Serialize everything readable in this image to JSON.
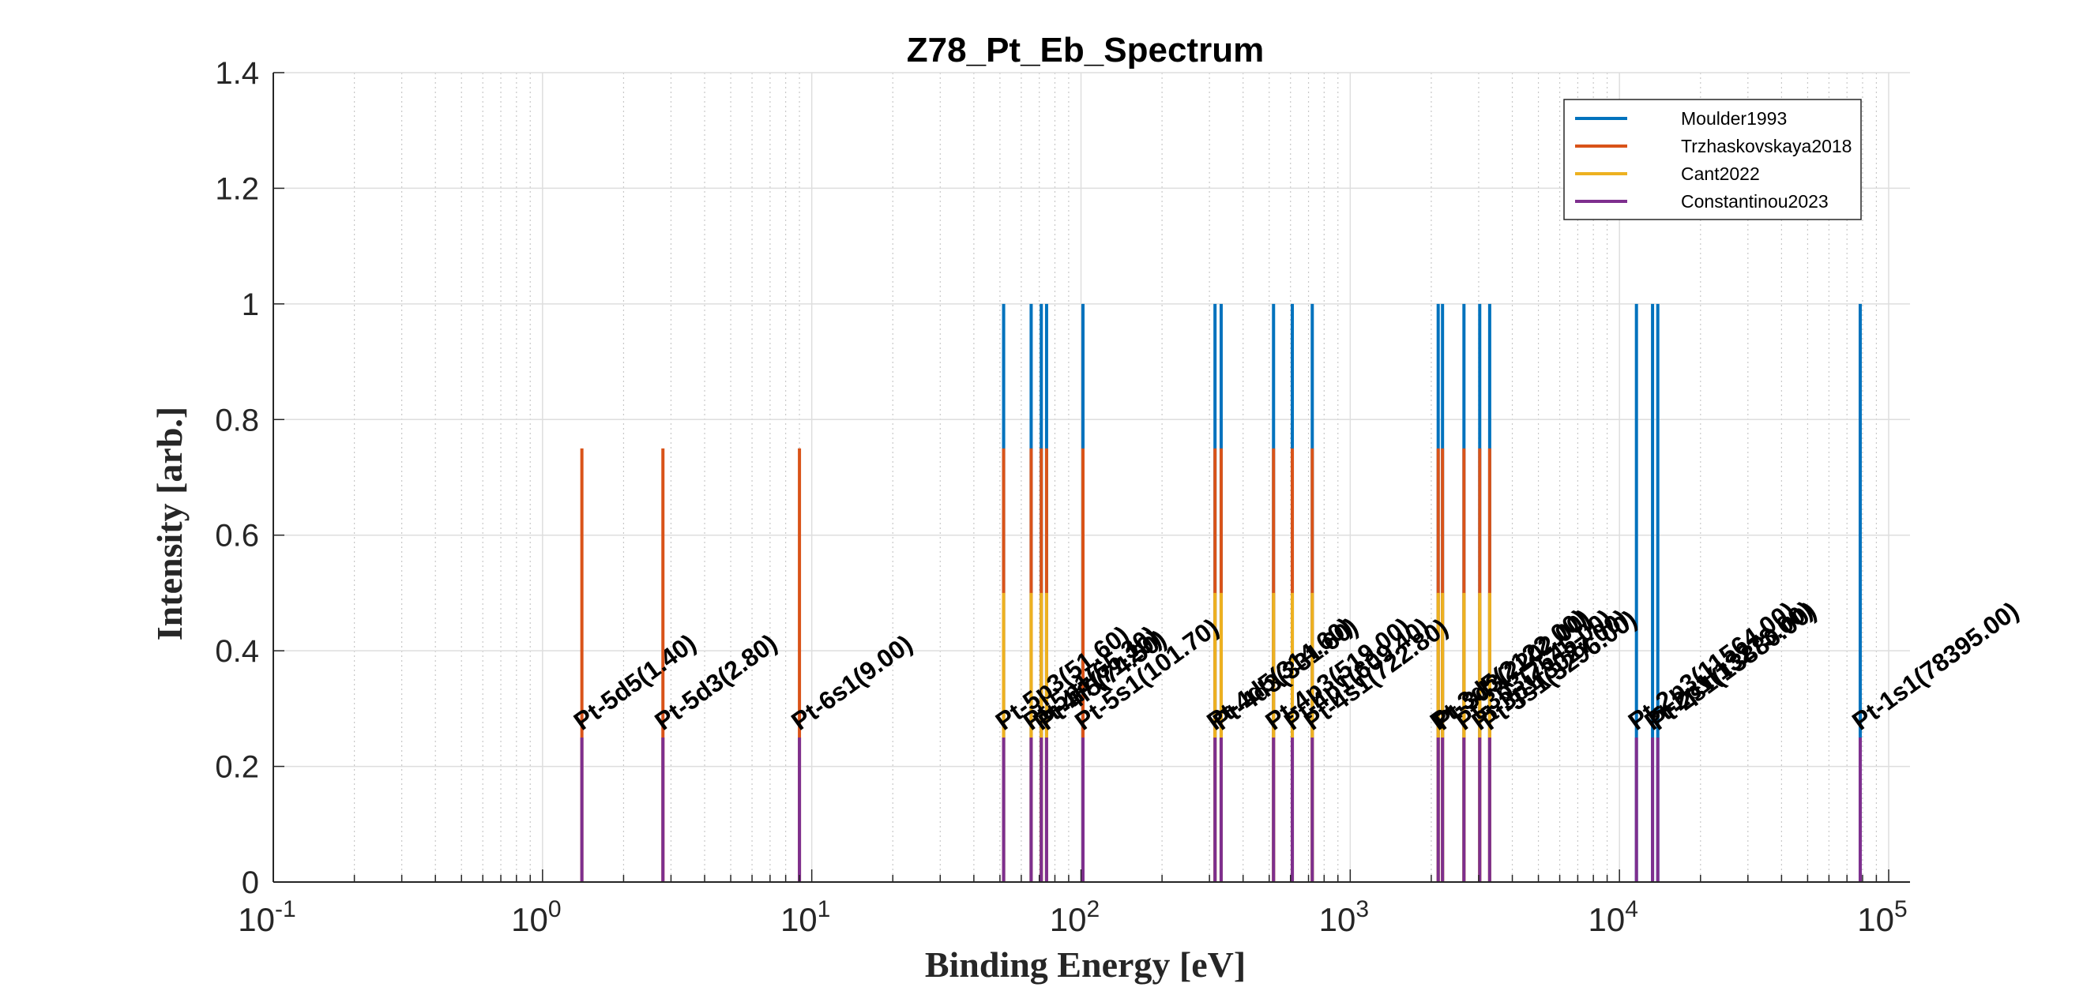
{
  "chart_data": {
    "type": "bar",
    "subtype": "stem",
    "title": "Z78_Pt_Eb_Spectrum",
    "xlabel": "Binding Energy [eV]",
    "ylabel": "Intensity [arb.]",
    "xscale": "log",
    "xlim": [
      0.1,
      120000
    ],
    "ylim": [
      0,
      1.4
    ],
    "xticks": [
      {
        "value": 0.1,
        "base": "10",
        "exp": "-1"
      },
      {
        "value": 1,
        "base": "10",
        "exp": "0"
      },
      {
        "value": 10,
        "base": "10",
        "exp": "1"
      },
      {
        "value": 100,
        "base": "10",
        "exp": "2"
      },
      {
        "value": 1000,
        "base": "10",
        "exp": "3"
      },
      {
        "value": 10000,
        "base": "10",
        "exp": "4"
      },
      {
        "value": 100000,
        "base": "10",
        "exp": "5"
      }
    ],
    "yticks": [
      {
        "value": 0,
        "label": "0"
      },
      {
        "value": 0.2,
        "label": "0.2"
      },
      {
        "value": 0.4,
        "label": "0.4"
      },
      {
        "value": 0.6,
        "label": "0.6"
      },
      {
        "value": 0.8,
        "label": "0.8"
      },
      {
        "value": 1,
        "label": "1"
      },
      {
        "value": 1.2,
        "label": "1.2"
      },
      {
        "value": 1.4,
        "label": "1.4"
      }
    ],
    "grid": true,
    "legend_position": "top-right",
    "series": [
      {
        "name": "Moulder1993",
        "color": "#0072BD",
        "height": 1.0,
        "x": [
          51.6,
          65.3,
          71.2,
          74.5,
          101.7,
          314.6,
          331.6,
          519.0,
          609.4,
          722.8,
          2122.0,
          2202.0,
          2645.0,
          3027.0,
          3296.0,
          11564.0,
          13273.0,
          13880.0,
          78395.0
        ]
      },
      {
        "name": "Trzhaskovskaya2018",
        "color": "#D95319",
        "height": 0.75,
        "x": [
          1.4,
          2.8,
          9.0,
          51.6,
          65.3,
          71.2,
          74.5,
          101.7,
          314.6,
          331.6,
          519.0,
          609.4,
          722.8,
          2122.0,
          2202.0,
          2645.0,
          3027.0,
          3296.0
        ]
      },
      {
        "name": "Cant2022",
        "color": "#EDB120",
        "height": 0.5,
        "x": [
          51.6,
          65.3,
          71.2,
          74.5,
          314.6,
          331.6,
          519.0,
          609.4,
          722.8,
          2122.0,
          2202.0,
          2645.0,
          3027.0,
          3296.0
        ]
      },
      {
        "name": "Constantinou2023",
        "color": "#7E2F8E",
        "height": 0.25,
        "x": [
          1.4,
          2.8,
          9.0,
          51.6,
          65.3,
          71.2,
          74.5,
          101.7,
          314.6,
          331.6,
          519.0,
          609.4,
          722.8,
          2122.0,
          2202.0,
          2645.0,
          3027.0,
          3296.0,
          11564.0,
          13273.0,
          13880.0,
          78395.0
        ]
      }
    ],
    "annotations": [
      {
        "x": 1.4,
        "y": 0.25,
        "text": "Pt-5d5(1.40)"
      },
      {
        "x": 2.8,
        "y": 0.25,
        "text": "Pt-5d3(2.80)"
      },
      {
        "x": 9.0,
        "y": 0.25,
        "text": "Pt-6s1(9.00)"
      },
      {
        "x": 51.6,
        "y": 0.25,
        "text": "Pt-5p3(51.60)"
      },
      {
        "x": 65.3,
        "y": 0.25,
        "text": "Pt-5p1(65.30)"
      },
      {
        "x": 71.2,
        "y": 0.25,
        "text": "Pt-4f7(71.20)"
      },
      {
        "x": 74.5,
        "y": 0.25,
        "text": "Pt-4f5(74.50)"
      },
      {
        "x": 101.7,
        "y": 0.25,
        "text": "Pt-5s1(101.70)"
      },
      {
        "x": 314.6,
        "y": 0.25,
        "text": "Pt-4d5(314.60)"
      },
      {
        "x": 331.6,
        "y": 0.25,
        "text": "Pt-4d3(331.60)"
      },
      {
        "x": 519.0,
        "y": 0.25,
        "text": "Pt-4p3(519.00)"
      },
      {
        "x": 609.4,
        "y": 0.25,
        "text": "Pt-4p1(609.40)"
      },
      {
        "x": 722.8,
        "y": 0.25,
        "text": "Pt-4s1(722.80)"
      },
      {
        "x": 2122.0,
        "y": 0.25,
        "text": "Pt-3d5(2122.00)"
      },
      {
        "x": 2202.0,
        "y": 0.25,
        "text": "Pt-3d3(2202.00)"
      },
      {
        "x": 2645.0,
        "y": 0.25,
        "text": "Pt-3p3(2645.00)"
      },
      {
        "x": 3027.0,
        "y": 0.25,
        "text": "Pt-3p1(3027.00)"
      },
      {
        "x": 3296.0,
        "y": 0.25,
        "text": "Pt-3s1(3296.00)"
      },
      {
        "x": 11564.0,
        "y": 0.25,
        "text": "Pt-2p3(11564.00)"
      },
      {
        "x": 13273.0,
        "y": 0.25,
        "text": "Pt-2p1(13273.00)"
      },
      {
        "x": 13880.0,
        "y": 0.25,
        "text": "Pt-2s1(13880.00)"
      },
      {
        "x": 78395.0,
        "y": 0.25,
        "text": "Pt-1s1(78395.00)"
      }
    ]
  }
}
